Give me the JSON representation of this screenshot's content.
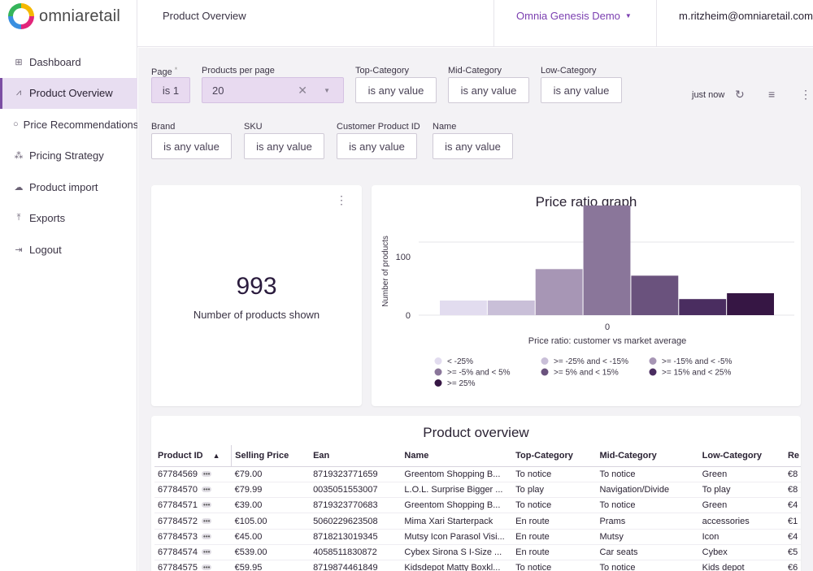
{
  "app": {
    "logo_text": "omniaretail",
    "page_title": "Product Overview",
    "tenant": "Omnia Genesis Demo",
    "user_email": "m.ritzheim@omniaretail.com"
  },
  "sidebar": {
    "items": [
      {
        "label": "Dashboard",
        "icon": "grid-icon",
        "glyph": "⊞"
      },
      {
        "label": "Product Overview",
        "icon": "trend-icon",
        "glyph": "⩘"
      },
      {
        "label": "Price Recommendations",
        "icon": "circle-icon",
        "glyph": "○"
      },
      {
        "label": "Pricing Strategy",
        "icon": "hierarchy-icon",
        "glyph": "⁂"
      },
      {
        "label": "Product import",
        "icon": "cloud-upload-icon",
        "glyph": "☁"
      },
      {
        "label": "Exports",
        "icon": "upload-icon",
        "glyph": "⤒"
      },
      {
        "label": "Logout",
        "icon": "logout-icon",
        "glyph": "⇥"
      }
    ]
  },
  "filters": {
    "page": {
      "label": "Page",
      "required_mark": "*",
      "value": "is 1"
    },
    "products_per_page": {
      "label": "Products per page",
      "value": "20"
    },
    "top_category": {
      "label": "Top-Category",
      "value": "is any value"
    },
    "mid_category": {
      "label": "Mid-Category",
      "value": "is any value"
    },
    "low_category": {
      "label": "Low-Category",
      "value": "is any value"
    },
    "brand": {
      "label": "Brand",
      "value": "is any value"
    },
    "sku": {
      "label": "SKU",
      "value": "is any value"
    },
    "customer_product_id": {
      "label": "Customer Product ID",
      "value": "is any value"
    },
    "name": {
      "label": "Name",
      "value": "is any value"
    }
  },
  "toolbar": {
    "updated": "just now"
  },
  "kpi": {
    "value": "993",
    "label": "Number of products shown"
  },
  "chart_data": {
    "type": "bar",
    "title": "Price ratio graph",
    "xlabel": "Price ratio: customer vs market average",
    "ylabel": "Number of products",
    "x_tick": "0",
    "y_ticks": [
      "0",
      "100"
    ],
    "ylim": [
      0,
      160
    ],
    "grid": true,
    "legend_position": "bottom",
    "categories": [
      "< -25%",
      ">= -25% and < -15%",
      ">= -15% and < -5%",
      ">= -5% and < 5%",
      ">= 5% and < 15%",
      ">= 15% and < 25%",
      ">= 25%"
    ],
    "values": [
      20,
      20,
      63,
      150,
      54,
      22,
      30
    ],
    "colors": [
      "#e2dcef",
      "#c9bfd8",
      "#a796b5",
      "#8a769a",
      "#6a527d",
      "#4a2d60",
      "#361644"
    ]
  },
  "table": {
    "title": "Product overview",
    "columns": [
      "Product ID",
      "Selling Price",
      "Ean",
      "Name",
      "Top-Category",
      "Mid-Category",
      "Low-Category",
      "Re"
    ],
    "rows": [
      [
        "67784569",
        "€79.00",
        "8719323771659",
        "Greentom Shopping B...",
        "To notice",
        "To notice",
        "Green",
        "€8"
      ],
      [
        "67784570",
        "€79.99",
        "0035051553007",
        "L.O.L. Surprise Bigger ...",
        "To play",
        "Navigation/Divide",
        "To play",
        "€8"
      ],
      [
        "67784571",
        "€39.00",
        "8719323770683",
        "Greentom Shopping B...",
        "To notice",
        "To notice",
        "Green",
        "€4"
      ],
      [
        "67784572",
        "€105.00",
        "5060229623508",
        "Mima Xari Starterpack",
        "En route",
        "Prams",
        "accessories",
        "€1"
      ],
      [
        "67784573",
        "€45.00",
        "8718213019345",
        "Mutsy Icon Parasol Visi...",
        "En route",
        "Mutsy",
        "Icon",
        "€4"
      ],
      [
        "67784574",
        "€539.00",
        "4058511830872",
        "Cybex Sirona S I-Size ...",
        "En route",
        "Car seats",
        "Cybex",
        "€5"
      ],
      [
        "67784575",
        "€59.95",
        "8719874461849",
        "Kidsdepot Matty Boxkl...",
        "To notice",
        "To notice",
        "Kids depot",
        "€6"
      ]
    ],
    "id_badge": "•••",
    "sort_indicator": "▲"
  }
}
